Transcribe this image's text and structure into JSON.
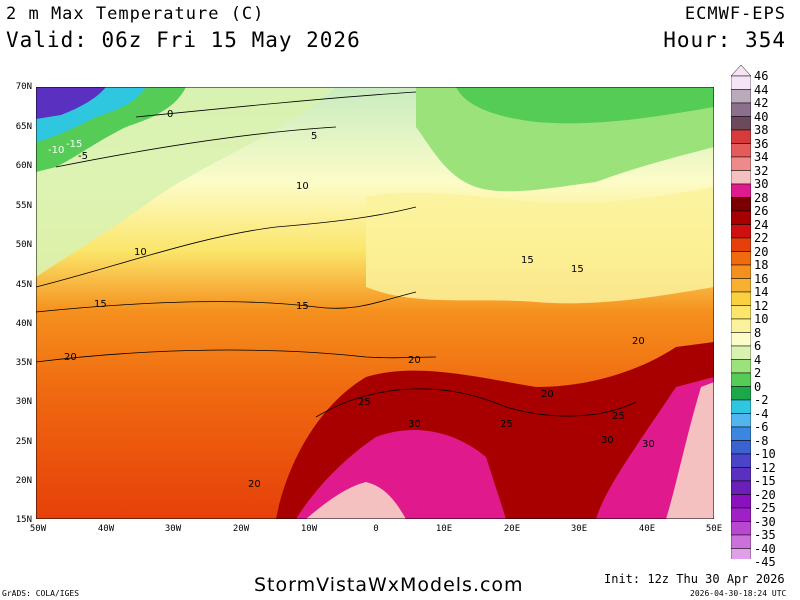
{
  "header": {
    "title": "2 m Max Temperature (C)",
    "valid": "Valid: 06z Fri 15 May 2026",
    "model": "ECMWF-EPS",
    "hour": "Hour: 354"
  },
  "map": {
    "lat_labels": [
      "70N",
      "65N",
      "60N",
      "55N",
      "50N",
      "45N",
      "40N",
      "35N",
      "30N",
      "25N",
      "20N",
      "15N"
    ],
    "lon_labels": [
      "50W",
      "40W",
      "30W",
      "20W",
      "10W",
      "0",
      "10E",
      "20E",
      "30E",
      "40E",
      "50E"
    ],
    "contour_labels": [
      "0",
      "5",
      "10",
      "15",
      "20",
      "25",
      "30",
      "-10",
      "-15",
      "-5"
    ]
  },
  "colorbar": {
    "labels": [
      "46",
      "44",
      "42",
      "40",
      "38",
      "36",
      "34",
      "32",
      "30",
      "28",
      "26",
      "24",
      "22",
      "20",
      "18",
      "16",
      "14",
      "12",
      "10",
      "8",
      "6",
      "4",
      "2",
      "0",
      "-2",
      "-4",
      "-6",
      "-8",
      "-10",
      "-12",
      "-15",
      "-20",
      "-25",
      "-30",
      "-35",
      "-40",
      "-45"
    ],
    "colors": [
      "#f6e4f6",
      "#bbaabb",
      "#8c6f8c",
      "#6a4a5c",
      "#d63a3a",
      "#e55a5a",
      "#ee8a8a",
      "#f5c0c0",
      "#e01a8c",
      "#7a0000",
      "#a80000",
      "#d01010",
      "#e6400a",
      "#f06a10",
      "#f5901e",
      "#f8b030",
      "#fad040",
      "#fbe56a",
      "#fcf29c",
      "#fcfcc8",
      "#d9f2b0",
      "#9be27a",
      "#55cc55",
      "#1aa84a",
      "#2fc7e0",
      "#52b5f0",
      "#3a86e0",
      "#3a62d0",
      "#4a44c8",
      "#5a30c0",
      "#6a20b8",
      "#8a10c0",
      "#a020c8",
      "#b848d0",
      "#cc70dc",
      "#e0a0e8"
    ]
  },
  "footer": {
    "grads": "GrADS: COLA/IGES",
    "site": "StormVistaWxModels.com",
    "init": "Init: 12z Thu 30 Apr 2026",
    "stamp": "2026-04-30-18:24 UTC"
  }
}
